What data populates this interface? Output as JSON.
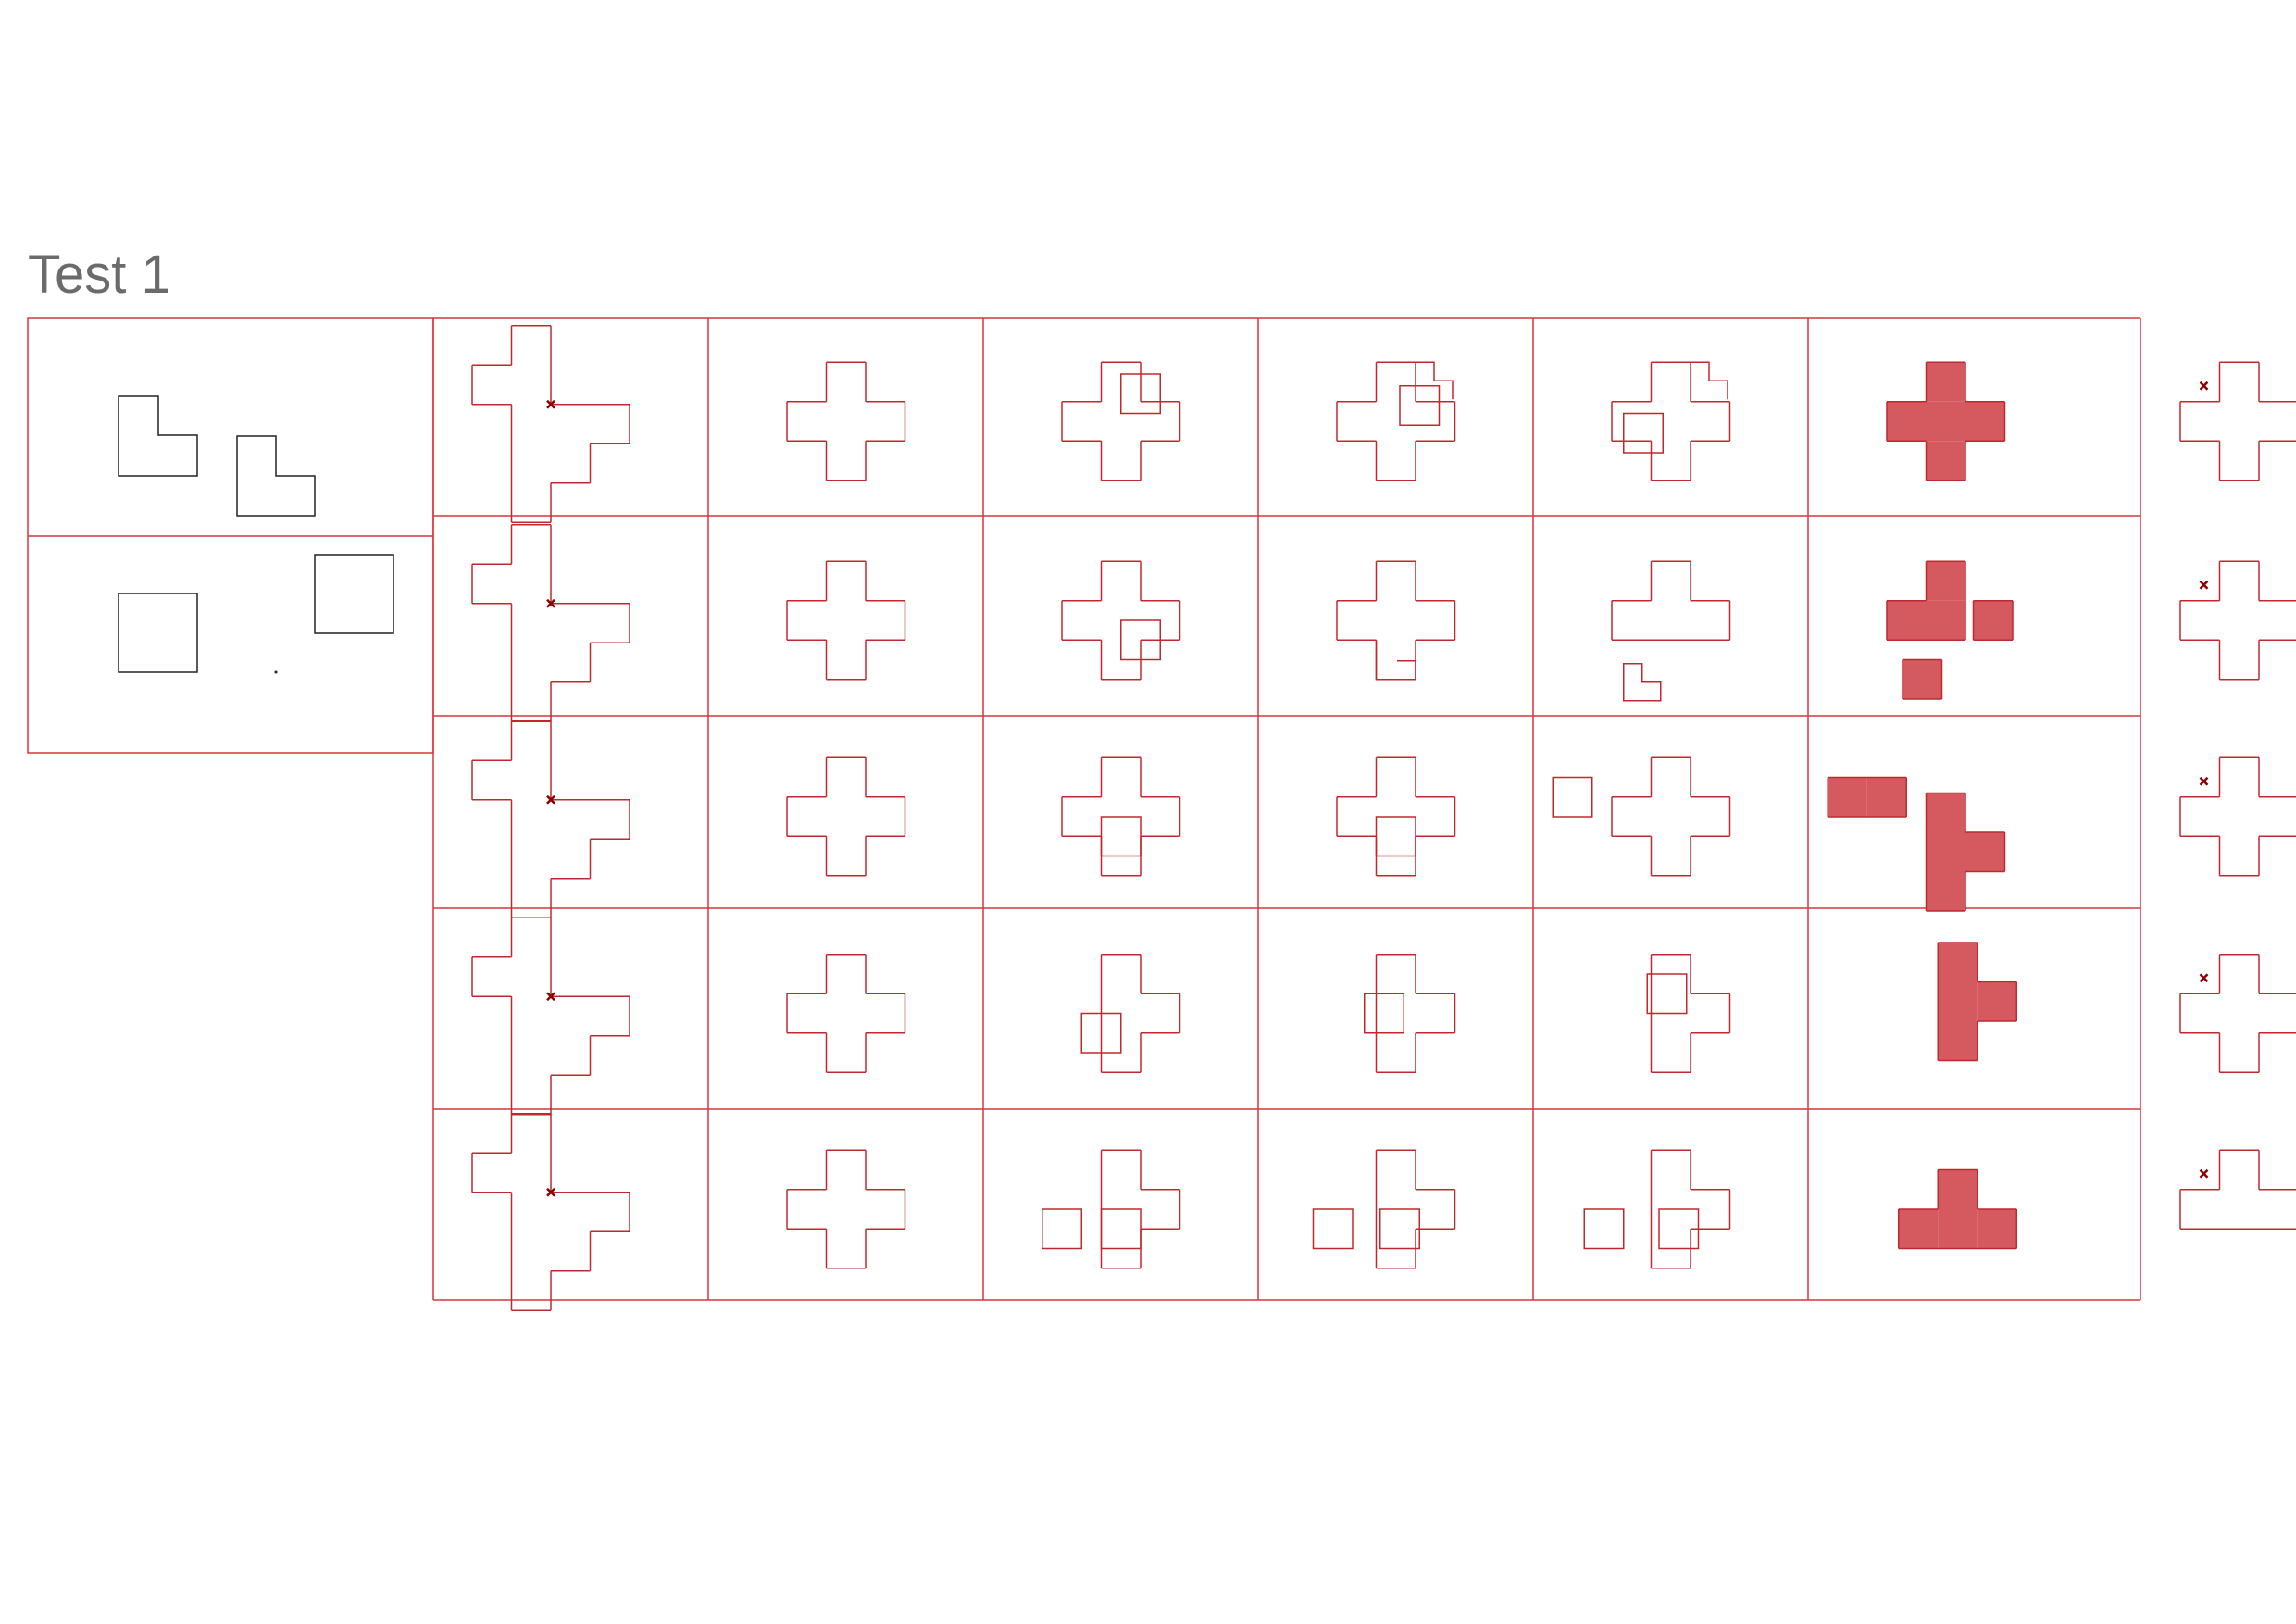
{
  "title": "Test 1",
  "colors": {
    "grid": "#d9353b",
    "shape_stroke": "#c0282f",
    "fill": "#d45a5f",
    "marker": "#8b0000",
    "input_stroke": "#222222"
  },
  "rows": 5,
  "columns": 8
}
